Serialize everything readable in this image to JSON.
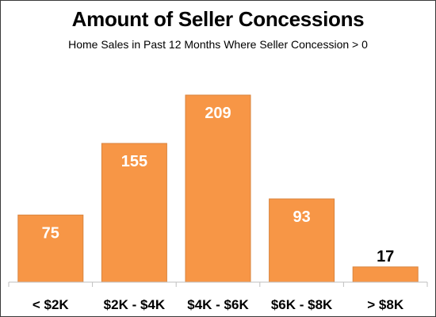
{
  "chart_data": {
    "type": "bar",
    "title": "Amount of Seller Concessions",
    "subtitle": "Home Sales in Past 12 Months Where Seller Concession > 0",
    "categories": [
      "< $2K",
      "$2K - $4K",
      "$4K - $6K",
      "$6K - $8K",
      "> $8K"
    ],
    "values": [
      75,
      155,
      209,
      93,
      17
    ],
    "xlabel": "",
    "ylabel": "",
    "ylim": [
      0,
      209
    ],
    "grid": false,
    "legend": "none",
    "data_labels": true
  },
  "colors": {
    "bar": "#f79646",
    "bar_edge": "#d9843e",
    "label_inside": "#ffffff",
    "label_outside": "#000000",
    "axis": "#bfbfbf"
  }
}
